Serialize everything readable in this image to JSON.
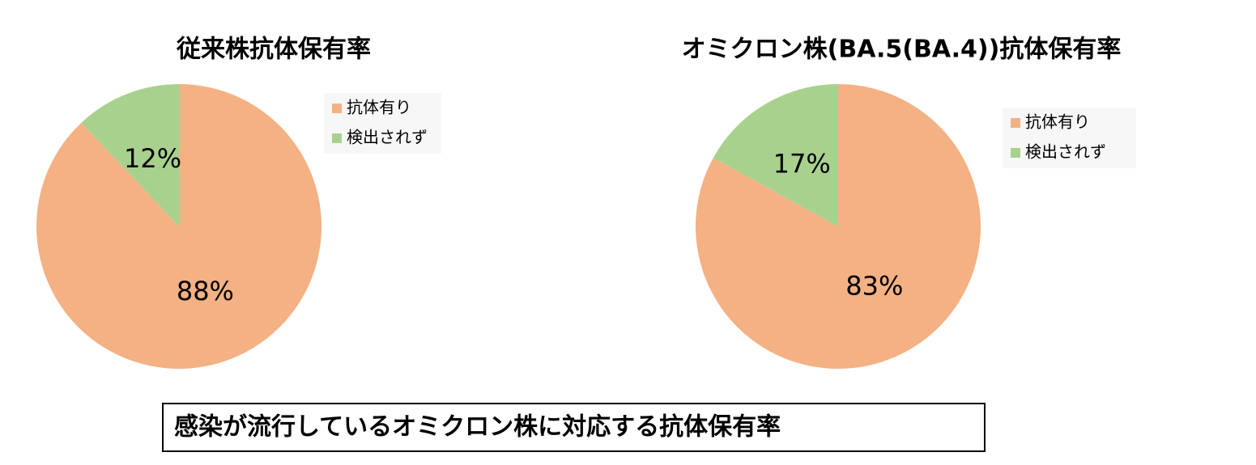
{
  "chart_data": [
    {
      "type": "pie",
      "title": "従来株抗体保有率",
      "categories": [
        "抗体有り",
        "検出されず"
      ],
      "values": [
        88,
        12
      ],
      "value_labels": [
        "88%",
        "12%"
      ],
      "colors": [
        "#F4B183",
        "#A9D18E"
      ]
    },
    {
      "type": "pie",
      "title": "オミクロン株(BA.5(BA.4))抗体保有率",
      "categories": [
        "抗体有り",
        "検出されず"
      ],
      "values": [
        83,
        17
      ],
      "value_labels": [
        "83%",
        "17%"
      ],
      "colors": [
        "#F4B183",
        "#A9D18E"
      ]
    }
  ],
  "caption": "感染が流行しているオミクロン株に対応する抗体保有率"
}
